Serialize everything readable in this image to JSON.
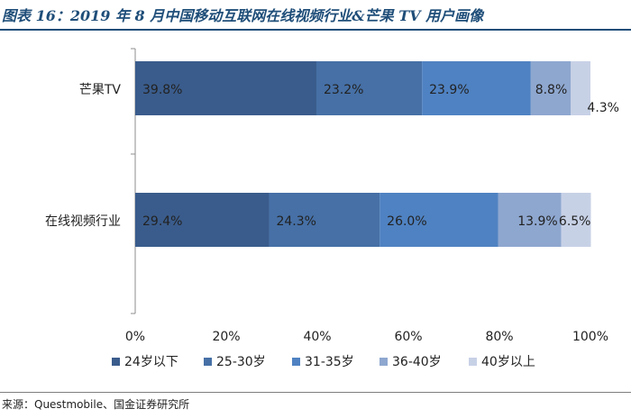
{
  "title": "图表 16：2019 年 8 月中国移动互联网在线视频行业&芒果 TV 用户画像",
  "source": "来源：Questmobile、国金证券研究所",
  "chart_data": {
    "type": "bar",
    "orientation": "horizontal",
    "stacked": true,
    "categories": [
      "芒果TV",
      "在线视频行业"
    ],
    "series": [
      {
        "name": "24岁以下",
        "values": [
          39.8,
          29.4
        ],
        "labels": [
          "39.8%",
          "29.4%"
        ],
        "color": "#3a5c8c"
      },
      {
        "name": "25-30岁",
        "values": [
          23.2,
          24.3
        ],
        "labels": [
          "23.2%",
          "24.3%"
        ],
        "color": "#4670a6"
      },
      {
        "name": "31-35岁",
        "values": [
          23.9,
          26.0
        ],
        "labels": [
          "23.9%",
          "26.0%"
        ],
        "color": "#4f82c2"
      },
      {
        "name": "36-40岁",
        "values": [
          8.8,
          13.9
        ],
        "labels": [
          "8.8%",
          "13.9%"
        ],
        "color": "#8ea7cf"
      },
      {
        "name": "40岁以上",
        "values": [
          4.3,
          6.5
        ],
        "labels": [
          "4.3%",
          "6.5%"
        ],
        "color": "#c7d1e6"
      }
    ],
    "xlim": [
      0,
      100
    ],
    "xticks": [
      "0%",
      "20%",
      "40%",
      "60%",
      "80%",
      "100%"
    ],
    "grid": false,
    "legend": "bottom"
  }
}
